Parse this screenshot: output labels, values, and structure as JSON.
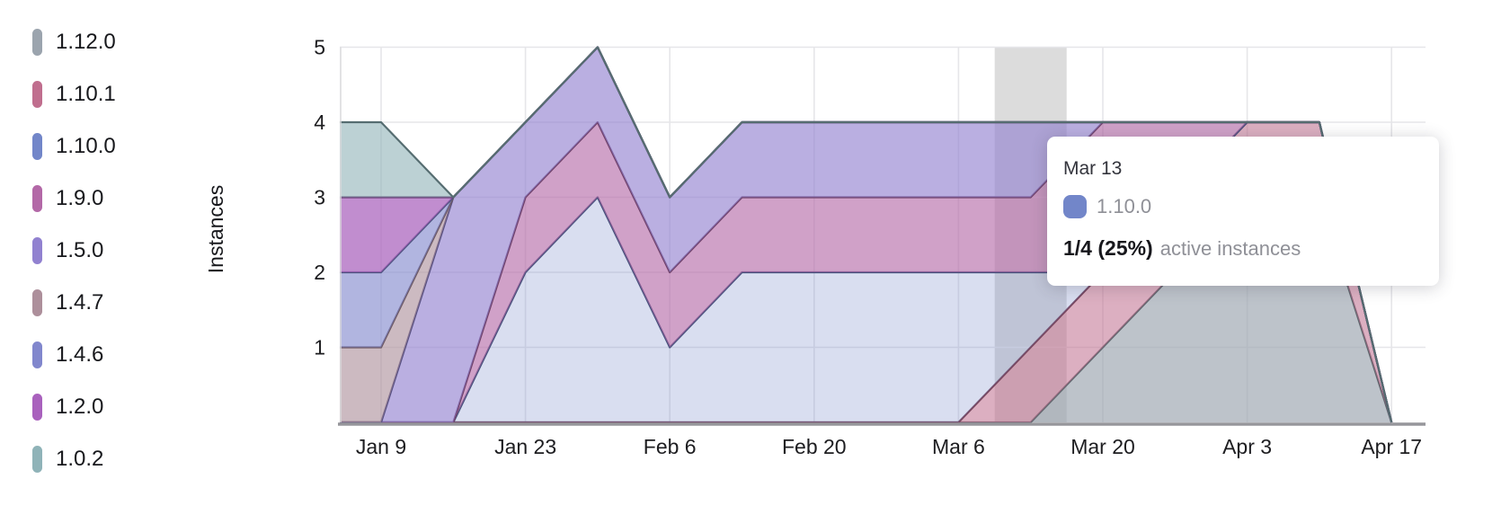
{
  "tooltip": {
    "date": "Mar 13",
    "series": "1.10.0",
    "swatch_color": "#7286c9",
    "value": "1/4 (25%)",
    "suffix": "active instances"
  },
  "chart_data": {
    "type": "area",
    "stacked": true,
    "title": "",
    "xlabel": "",
    "ylabel": "Instances",
    "ylim": [
      0,
      5
    ],
    "y_ticks": [
      1,
      2,
      3,
      4,
      5
    ],
    "grid": true,
    "legend_position": "left",
    "x": [
      "Jan 2",
      "Jan 9",
      "Jan 16",
      "Jan 23",
      "Jan 30",
      "Feb 6",
      "Feb 13",
      "Feb 20",
      "Feb 27",
      "Mar 6",
      "Mar 13",
      "Mar 20",
      "Mar 27",
      "Apr 3",
      "Apr 10",
      "Apr 17"
    ],
    "x_tick_labels": [
      "Jan 9",
      "Jan 23",
      "Feb 6",
      "Feb 20",
      "Mar 6",
      "Mar 20",
      "Apr 3",
      "Apr 17"
    ],
    "x_tick_indices": [
      1,
      3,
      5,
      7,
      9,
      11,
      13,
      15
    ],
    "hover": {
      "x_index": 10,
      "x_label": "Mar 13",
      "band_color": "#dcdcdc"
    },
    "series": [
      {
        "name": "1.12.0",
        "color": "#9ba4ae",
        "stroke": "#5f666d",
        "fill_alpha": 0.66,
        "values": [
          0,
          0,
          0,
          0,
          0,
          0,
          0,
          0,
          0,
          0,
          0,
          1,
          2,
          3,
          3,
          0
        ]
      },
      {
        "name": "1.10.1",
        "color": "#c06e8e",
        "stroke": "#77445a",
        "fill_alpha": 0.55,
        "values": [
          0,
          0,
          0,
          0,
          0,
          0,
          0,
          0,
          0,
          0,
          1,
          1,
          1,
          1,
          1,
          0
        ]
      },
      {
        "name": "1.10.0",
        "color": "#7286c9",
        "stroke": "#46517c",
        "fill_alpha": 0.27,
        "values": [
          0,
          0,
          0,
          2,
          3,
          1,
          2,
          2,
          2,
          2,
          1,
          0,
          0,
          0,
          0,
          0
        ]
      },
      {
        "name": "1.9.0",
        "color": "#b368a7",
        "stroke": "#6e4168",
        "fill_alpha": 0.62,
        "values": [
          0,
          0,
          0,
          1,
          1,
          1,
          1,
          1,
          1,
          1,
          1,
          2,
          1,
          0,
          0,
          0
        ]
      },
      {
        "name": "1.5.0",
        "color": "#9181d0",
        "stroke": "#575081",
        "fill_alpha": 0.63,
        "values": [
          0,
          0,
          3,
          1,
          1,
          1,
          1,
          1,
          1,
          1,
          1,
          0,
          0,
          0,
          0,
          0
        ]
      },
      {
        "name": "1.4.7",
        "color": "#ad8f9b",
        "stroke": "#6b5862",
        "fill_alpha": 0.62,
        "values": [
          1,
          1,
          0,
          0,
          0,
          0,
          0,
          0,
          0,
          0,
          0,
          0,
          0,
          0,
          0,
          0
        ]
      },
      {
        "name": "1.4.6",
        "color": "#8187cd",
        "stroke": "#4d527e",
        "fill_alpha": 0.62,
        "values": [
          1,
          1,
          0,
          0,
          0,
          0,
          0,
          0,
          0,
          0,
          0,
          0,
          0,
          0,
          0,
          0
        ]
      },
      {
        "name": "1.2.0",
        "color": "#a961bd",
        "stroke": "#673c74",
        "fill_alpha": 0.72,
        "values": [
          1,
          1,
          0,
          0,
          0,
          0,
          0,
          0,
          0,
          0,
          0,
          0,
          0,
          0,
          0,
          0
        ]
      },
      {
        "name": "1.0.2",
        "color": "#8fb3b8",
        "stroke": "#566d71",
        "fill_alpha": 0.6,
        "values": [
          1,
          1,
          0,
          0,
          0,
          0,
          0,
          0,
          0,
          0,
          0,
          0,
          0,
          0,
          0,
          0
        ]
      }
    ]
  }
}
